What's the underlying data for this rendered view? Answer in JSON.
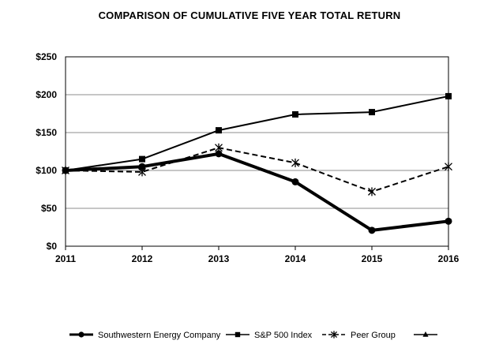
{
  "chart_data": {
    "type": "line",
    "title": "COMPARISON OF CUMULATIVE FIVE YEAR TOTAL RETURN",
    "x": [
      "2011",
      "2012",
      "2013",
      "2014",
      "2015",
      "2016"
    ],
    "xlabel": "",
    "ylabel": "",
    "ylim": [
      0,
      250
    ],
    "yticks": [
      0,
      50,
      100,
      150,
      200,
      250
    ],
    "ytick_labels": [
      "$0",
      "$50",
      "$100",
      "$150",
      "$200",
      "$250"
    ],
    "grid": true,
    "legend_position": "bottom",
    "series": [
      {
        "name": "Southwestern Energy Company",
        "values": [
          100,
          105,
          122,
          85,
          21,
          33
        ],
        "marker": "circle",
        "line": "solid-thick",
        "color": "#000000"
      },
      {
        "name": "S&P 500 Index",
        "values": [
          100,
          115,
          153,
          174,
          177,
          198
        ],
        "marker": "square",
        "line": "solid",
        "color": "#000000"
      },
      {
        "name": "Peer Group",
        "values": [
          100,
          98,
          130,
          110,
          72,
          105
        ],
        "marker": "star",
        "line": "dashed",
        "color": "#000000"
      }
    ],
    "extra_legend": {
      "name": "",
      "marker": "triangle",
      "line": "solid"
    }
  }
}
